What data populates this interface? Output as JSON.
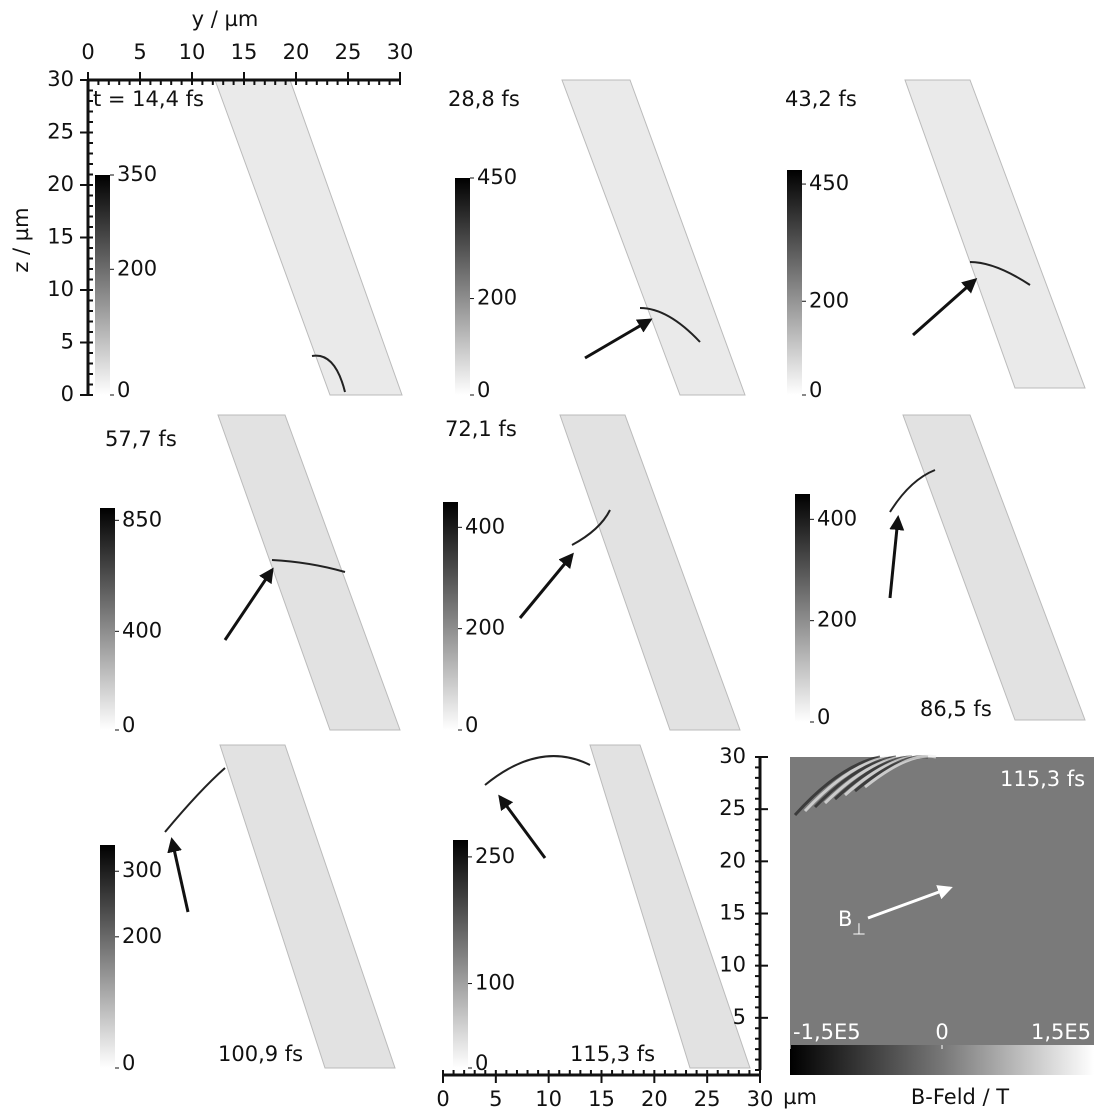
{
  "axes": {
    "y_label": "y / µm",
    "z_label": "z / µm",
    "unit_label": "µm",
    "top": {
      "lim": [
        0,
        30
      ],
      "ticks": [
        0,
        5,
        10,
        15,
        20,
        25,
        30
      ]
    },
    "left": {
      "lim": [
        0,
        30
      ],
      "ticks": [
        0,
        5,
        10,
        15,
        20,
        25,
        30
      ]
    },
    "bottom": {
      "lim": [
        0,
        30
      ],
      "ticks": [
        0,
        5,
        10,
        15,
        20,
        25,
        30
      ]
    },
    "right": {
      "lim": [
        0,
        30
      ],
      "ticks": [
        5,
        10,
        15,
        20,
        25,
        30
      ]
    }
  },
  "panels": [
    {
      "time": "t = 14,4 fs",
      "colorbar": {
        "lim": [
          0,
          350
        ],
        "ticks": [
          0,
          200,
          350
        ]
      }
    },
    {
      "time": "28,8 fs",
      "colorbar": {
        "lim": [
          0,
          450
        ],
        "ticks": [
          0,
          200,
          450
        ]
      }
    },
    {
      "time": "43,2 fs",
      "colorbar": {
        "lim": [
          0,
          480
        ],
        "ticks": [
          0,
          200,
          450
        ]
      }
    },
    {
      "time": "57,7 fs",
      "colorbar": {
        "lim": [
          0,
          900
        ],
        "ticks": [
          0,
          400,
          850
        ]
      }
    },
    {
      "time": "72,1 fs",
      "colorbar": {
        "lim": [
          0,
          450
        ],
        "ticks": [
          0,
          200,
          400
        ]
      }
    },
    {
      "time": "86,5 fs",
      "colorbar": {
        "lim": [
          0,
          450
        ],
        "ticks": [
          0,
          200,
          400
        ]
      }
    },
    {
      "time": "100,9 fs",
      "colorbar": {
        "lim": [
          0,
          340
        ],
        "ticks": [
          0,
          200,
          300
        ]
      }
    },
    {
      "time": "115,3 fs",
      "colorbar": {
        "lim": [
          0,
          270
        ],
        "ticks": [
          0,
          100,
          250
        ]
      }
    }
  ],
  "field_panel": {
    "time": "115,3 fs",
    "vector_label": "B",
    "vector_subscript": "⊥",
    "colorbar": {
      "label": "B-Feld / T",
      "lim": [
        -150000,
        150000
      ],
      "ticks": [
        {
          "value": -150000,
          "label": "-1,5E5"
        },
        0,
        {
          "value": 150000,
          "label": "1,5E5"
        }
      ]
    }
  }
}
